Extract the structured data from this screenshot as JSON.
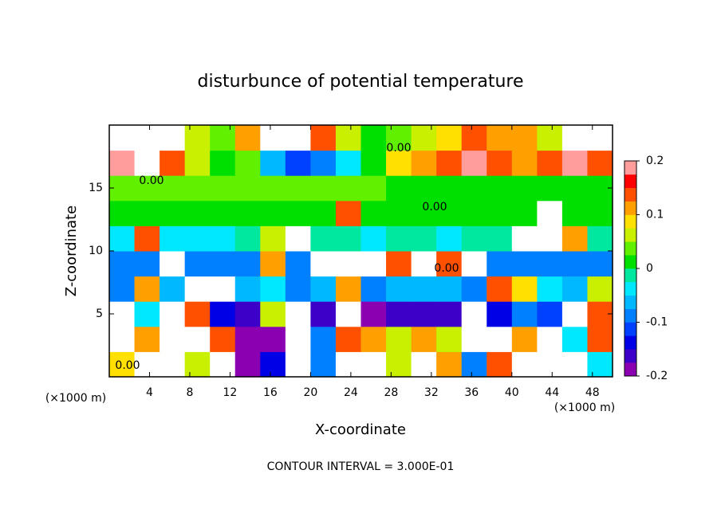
{
  "chart_data": {
    "type": "heatmap",
    "title": "disturbunce of potential temperature",
    "xlabel": "X-coordinate",
    "ylabel": "Z-coordinate",
    "x_unit_label": "(×1000 m)",
    "y_unit_label": "(×1000 m)",
    "footnote": "CONTOUR INTERVAL = 3.000E-01",
    "contour_labels": [
      "0.00",
      "0.00",
      "0.00",
      "0.00",
      "0.00"
    ],
    "xlim": [
      0,
      50
    ],
    "ylim": [
      0,
      20
    ],
    "xticks": [
      4,
      8,
      12,
      16,
      20,
      24,
      28,
      32,
      36,
      40,
      44,
      48
    ],
    "yticks": [
      5,
      10,
      15
    ],
    "x": [
      1.25,
      3.75,
      6.25,
      8.75,
      11.25,
      13.75,
      16.25,
      18.75,
      21.25,
      23.75,
      26.25,
      28.75,
      31.25,
      33.75,
      36.25,
      38.75,
      41.25,
      43.75,
      46.25,
      48.75
    ],
    "y": [
      1,
      3,
      5,
      7,
      9,
      11,
      13,
      15,
      17,
      19
    ],
    "z": [
      [
        0.08,
        0.25,
        0.25,
        0.06,
        0.25,
        -0.2,
        -0.15,
        0.25,
        -0.1,
        0.2,
        0.25,
        0.06,
        0.25,
        0.1,
        -0.1,
        0.15,
        0.25,
        0.25,
        0.25,
        -0.05
      ],
      [
        0.25,
        0.1,
        0.25,
        0.25,
        0.15,
        -0.18,
        -0.2,
        0.25,
        -0.1,
        0.15,
        0.1,
        0.05,
        0.12,
        0.06,
        0.2,
        0.25,
        0.1,
        0.25,
        -0.05,
        0.15
      ],
      [
        0.2,
        -0.05,
        0.25,
        0.15,
        -0.15,
        -0.17,
        0.05,
        0.25,
        -0.17,
        0.25,
        -0.18,
        -0.17,
        -0.17,
        -0.17,
        0.25,
        -0.15,
        -0.1,
        -0.12,
        0.2,
        0.15
      ],
      [
        -0.08,
        0.1,
        -0.06,
        0.2,
        0.25,
        -0.07,
        -0.05,
        -0.08,
        -0.07,
        0.1,
        -0.08,
        -0.07,
        -0.06,
        -0.07,
        -0.08,
        0.15,
        0.08,
        -0.05,
        -0.07,
        0.05
      ],
      [
        -0.09,
        -0.09,
        0.25,
        -0.1,
        -0.09,
        -0.1,
        0.1,
        -0.08,
        0.25,
        0.2,
        0.25,
        0.15,
        0.2,
        0.15,
        0.25,
        -0.09,
        -0.09,
        -0.1,
        -0.09,
        -0.08
      ],
      [
        -0.03,
        0.15,
        -0.03,
        -0.03,
        -0.03,
        -0.02,
        0.05,
        0.25,
        -0.02,
        -0.02,
        -0.03,
        -0.02,
        -0.02,
        -0.03,
        -0.01,
        -0.02,
        0.2,
        0.25,
        0.1,
        -0.02
      ],
      [
        0.01,
        0.01,
        0.02,
        0.01,
        0.01,
        0.02,
        0.02,
        0.01,
        0.01,
        0.15,
        0.02,
        0.01,
        0.01,
        0.02,
        0.01,
        0.02,
        0.02,
        0.25,
        0.01,
        0.02
      ],
      [
        0.03,
        0.03,
        0.03,
        0.03,
        0.03,
        0.03,
        0.03,
        0.03,
        0.03,
        0.03,
        0.03,
        0.02,
        0.02,
        0.02,
        0.02,
        0.02,
        0.02,
        0.02,
        0.02,
        0.02
      ],
      [
        0.18,
        0.2,
        0.15,
        0.05,
        0.02,
        0.04,
        -0.06,
        -0.12,
        -0.1,
        -0.05,
        0.02,
        0.08,
        0.12,
        0.15,
        0.18,
        0.15,
        0.12,
        0.15,
        0.18,
        0.15
      ],
      [
        0.25,
        0.25,
        0.2,
        0.05,
        0.03,
        0.1,
        0.25,
        0.25,
        0.15,
        0.05,
        0.02,
        0.03,
        0.05,
        0.08,
        0.15,
        0.12,
        0.1,
        0.05,
        0.2,
        0.25
      ]
    ],
    "clim": [
      -0.2,
      0.2
    ],
    "cticks": [
      -0.2,
      -0.1,
      0,
      0.1,
      0.2
    ],
    "colorscale": [
      "#8b00b0",
      "#3c00c8",
      "#0000e6",
      "#0040ff",
      "#0080ff",
      "#00b8ff",
      "#00e8ff",
      "#00e8a0",
      "#00e000",
      "#60f000",
      "#c8f000",
      "#ffe000",
      "#ffa000",
      "#ff5000",
      "#ff0000",
      "#ff9c9c"
    ],
    "over_color": "#ffffff"
  }
}
